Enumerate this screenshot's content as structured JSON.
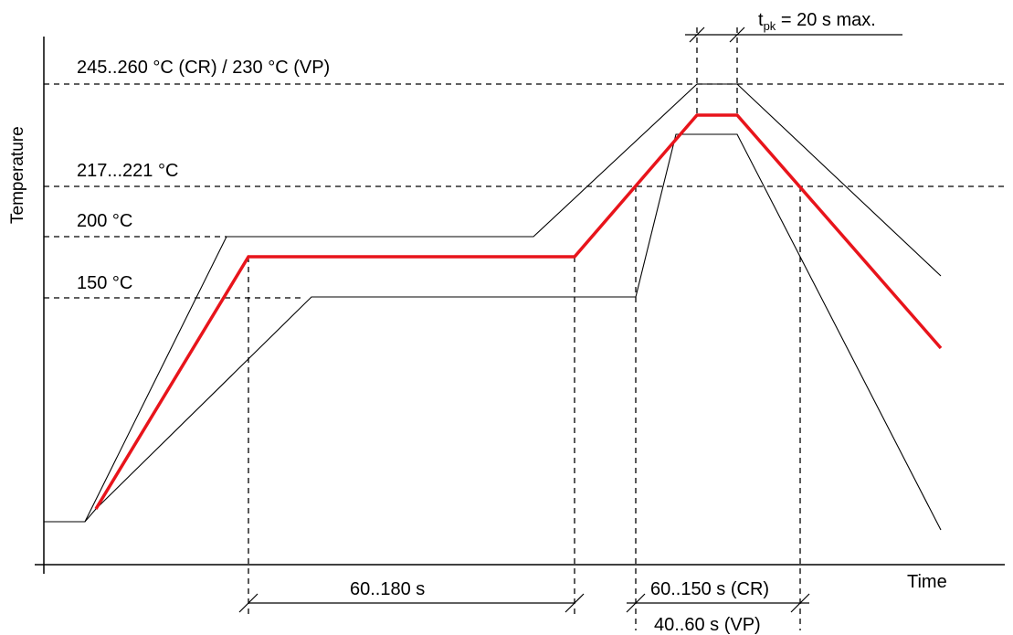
{
  "diagram": {
    "y_axis_label": "Temperature",
    "x_axis_label": "Time",
    "levels": {
      "peak": "245..260 °C (CR) / 230 °C (VP)",
      "liquidus": "217...221 °C",
      "soak_high": "200 °C",
      "soak_low": "150 °C"
    },
    "intervals": {
      "soak": "60..180 s",
      "above_liquidus_cr": "60..150 s (CR)",
      "above_liquidus_vp": "40..60 s (VP)",
      "peak_time_prefix": "t",
      "peak_time_sub": "pk",
      "peak_time_suffix": " = 20 s max."
    },
    "colors": {
      "profile": "#e8141b",
      "envelope": "#000000"
    }
  }
}
